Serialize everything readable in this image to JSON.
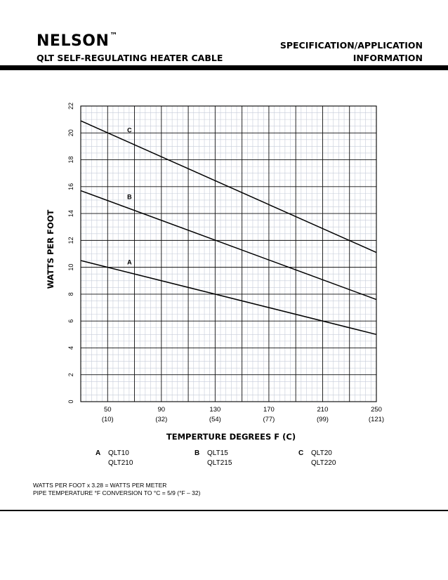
{
  "header": {
    "brand": "NELSON",
    "trademark": "™",
    "product": "QLT SELF-REGULATING HEATER CABLE",
    "spec_line1": "SPECIFICATION/APPLICATION",
    "spec_line2": "INFORMATION"
  },
  "chart_data": {
    "type": "line",
    "title": "",
    "xlabel": "TEMPERTURE DEGREES F (C)",
    "ylabel": "WATTS PER FOOT",
    "xlim": [
      30,
      250
    ],
    "ylim": [
      0,
      22
    ],
    "x_ticks": [
      50,
      90,
      130,
      170,
      210,
      250
    ],
    "x_tick_labels_f": [
      "50",
      "90",
      "130",
      "170",
      "210",
      "250"
    ],
    "x_tick_labels_c": [
      "(10)",
      "(32)",
      "(54)",
      "(77)",
      "(99)",
      "(121)"
    ],
    "y_ticks": [
      0,
      2,
      4,
      6,
      8,
      10,
      12,
      14,
      16,
      18,
      20,
      22
    ],
    "y_tick_labels": [
      "0",
      "2",
      "4",
      "6",
      "8",
      "10",
      "12",
      "14",
      "16",
      "18",
      "20",
      "22"
    ],
    "grid": true,
    "series": [
      {
        "name": "A",
        "x": [
          30,
          250
        ],
        "y": [
          10.5,
          5.0
        ]
      },
      {
        "name": "B",
        "x": [
          30,
          250
        ],
        "y": [
          15.7,
          7.6
        ]
      },
      {
        "name": "C",
        "x": [
          30,
          250
        ],
        "y": [
          20.9,
          11.1
        ]
      }
    ]
  },
  "legend": {
    "items": [
      {
        "key": "A",
        "model1": "QLT10",
        "model2": "QLT210"
      },
      {
        "key": "B",
        "model1": "QLT15",
        "model2": "QLT215"
      },
      {
        "key": "C",
        "model1": "QLT20",
        "model2": "QLT220"
      }
    ]
  },
  "notes": {
    "line1": "WATTS PER FOOT x 3.28 = WATTS PER METER",
    "line2": "PIPE TEMPERATURE °F CONVERSION TO °C = 5/9 (°F – 32)"
  }
}
